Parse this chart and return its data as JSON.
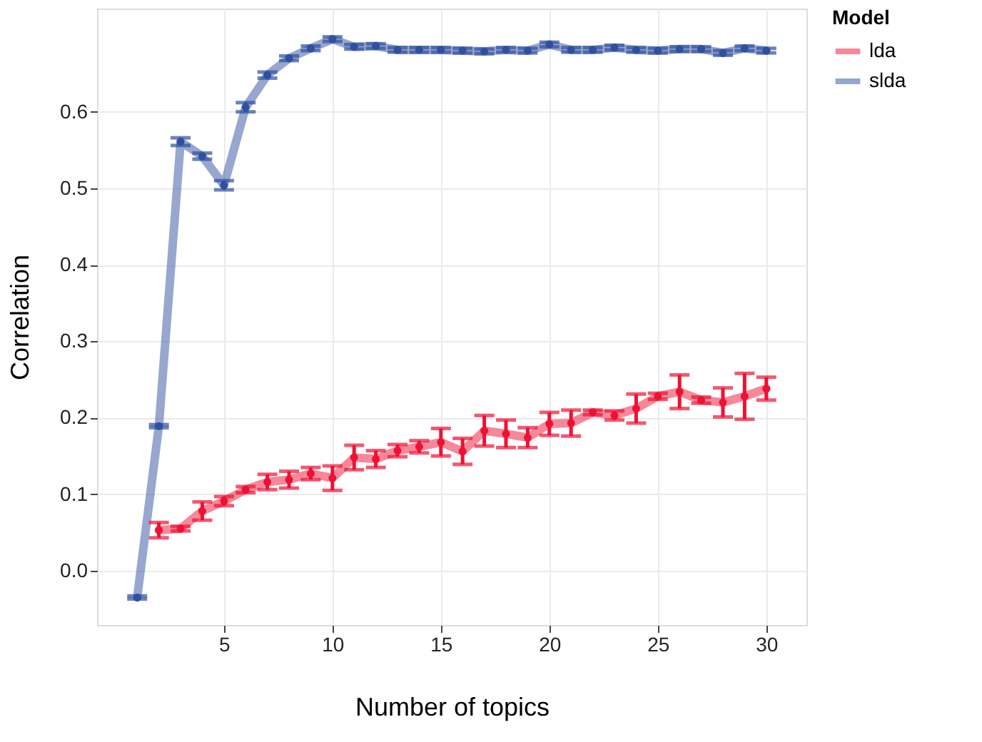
{
  "chart_data": {
    "type": "line",
    "xlabel": "Number of topics",
    "ylabel": "Correlation",
    "legend_title": "Model",
    "legend": "right",
    "grid": true,
    "marker": "circle",
    "line_style": "solid",
    "xlim": [
      -0.85,
      31.85
    ],
    "xticks": [
      5,
      10,
      15,
      20,
      25,
      30
    ],
    "ylim": [
      -0.071,
      0.735
    ],
    "yticks": [
      {
        "value": 0,
        "label": "0.0"
      },
      0.1,
      0.2,
      0.3,
      0.4,
      0.5,
      0.6
    ],
    "x": [
      1,
      2,
      3,
      4,
      5,
      6,
      7,
      8,
      9,
      10,
      11,
      12,
      13,
      14,
      15,
      16,
      17,
      18,
      19,
      20,
      21,
      22,
      23,
      24,
      25,
      26,
      27,
      28,
      29,
      30
    ],
    "series": [
      {
        "name": "lda",
        "color": "#ee1133",
        "x": [
          2,
          3,
          4,
          5,
          6,
          7,
          8,
          9,
          10,
          11,
          12,
          13,
          14,
          15,
          16,
          17,
          18,
          19,
          20,
          21,
          22,
          23,
          24,
          25,
          26,
          27,
          28,
          29,
          30
        ],
        "values": [
          0.053,
          0.055,
          0.078,
          0.091,
          0.106,
          0.116,
          0.119,
          0.127,
          0.121,
          0.148,
          0.146,
          0.157,
          0.162,
          0.168,
          0.156,
          0.183,
          0.179,
          0.174,
          0.192,
          0.193,
          0.207,
          0.203,
          0.212,
          0.228,
          0.234,
          0.223,
          0.22,
          0.228,
          0.238
        ],
        "errors": [
          0.01,
          0.003,
          0.012,
          0.006,
          0.004,
          0.01,
          0.011,
          0.008,
          0.016,
          0.016,
          0.011,
          0.008,
          0.008,
          0.018,
          0.017,
          0.02,
          0.018,
          0.013,
          0.015,
          0.017,
          0.003,
          0.006,
          0.019,
          0.004,
          0.022,
          0.004,
          0.019,
          0.03,
          0.015
        ]
      },
      {
        "name": "slda",
        "color": "#2f4f9f",
        "values": [
          -0.035,
          0.189,
          0.561,
          0.542,
          0.504,
          0.606,
          0.648,
          0.67,
          0.683,
          0.695,
          0.685,
          0.686,
          0.681,
          0.681,
          0.681,
          0.68,
          0.679,
          0.681,
          0.68,
          0.688,
          0.681,
          0.681,
          0.684,
          0.681,
          0.68,
          0.682,
          0.682,
          0.677,
          0.683,
          0.68
        ],
        "errors": [
          0.002,
          0.002,
          0.005,
          0.004,
          0.006,
          0.006,
          0.004,
          0.003,
          0.003,
          0.003,
          0.003,
          0.003,
          0.003,
          0.003,
          0.003,
          0.003,
          0.003,
          0.003,
          0.003,
          0.003,
          0.003,
          0.003,
          0.003,
          0.003,
          0.003,
          0.003,
          0.003,
          0.003,
          0.003,
          0.003
        ]
      }
    ]
  }
}
